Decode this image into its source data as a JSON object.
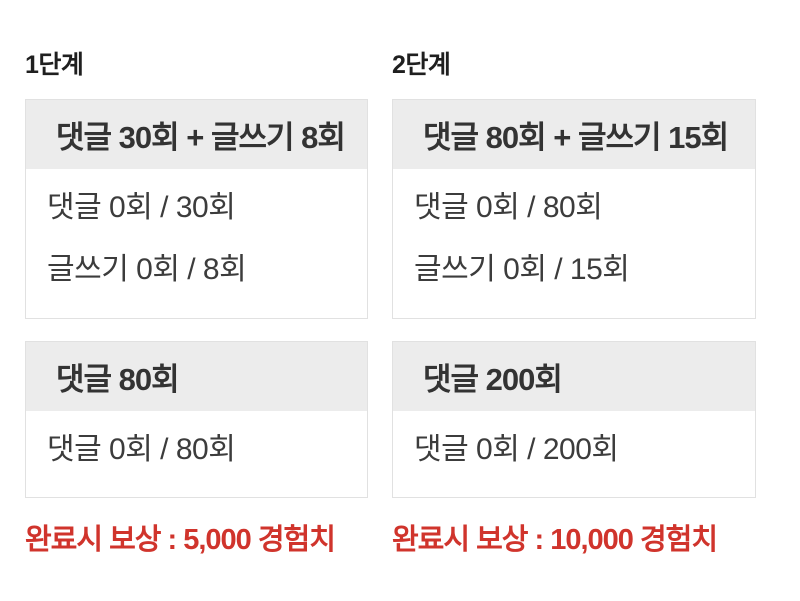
{
  "colors": {
    "background": "#ffffff",
    "card_border": "#e1e1e1",
    "card_header_bg": "#ececec",
    "title_text": "#333333",
    "body_text": "#3c3c3c",
    "stage_text": "#1f1f1f",
    "reward_text": "#d0342c"
  },
  "stages": [
    {
      "label": "1단계",
      "missions": [
        {
          "title": "댓글 30회 + 글쓰기 8회",
          "progress": [
            "댓글 0회 / 30회",
            "글쓰기 0회 / 8회"
          ]
        },
        {
          "title": "댓글 80회",
          "progress": [
            "댓글 0회 / 80회"
          ]
        }
      ],
      "reward": "완료시 보상 : 5,000 경험치"
    },
    {
      "label": "2단계",
      "missions": [
        {
          "title": "댓글 80회 + 글쓰기 15회",
          "progress": [
            "댓글 0회 / 80회",
            "글쓰기 0회 / 15회"
          ]
        },
        {
          "title": "댓글 200회",
          "progress": [
            "댓글 0회 / 200회"
          ]
        }
      ],
      "reward": "완료시 보상 : 10,000 경험치"
    }
  ]
}
